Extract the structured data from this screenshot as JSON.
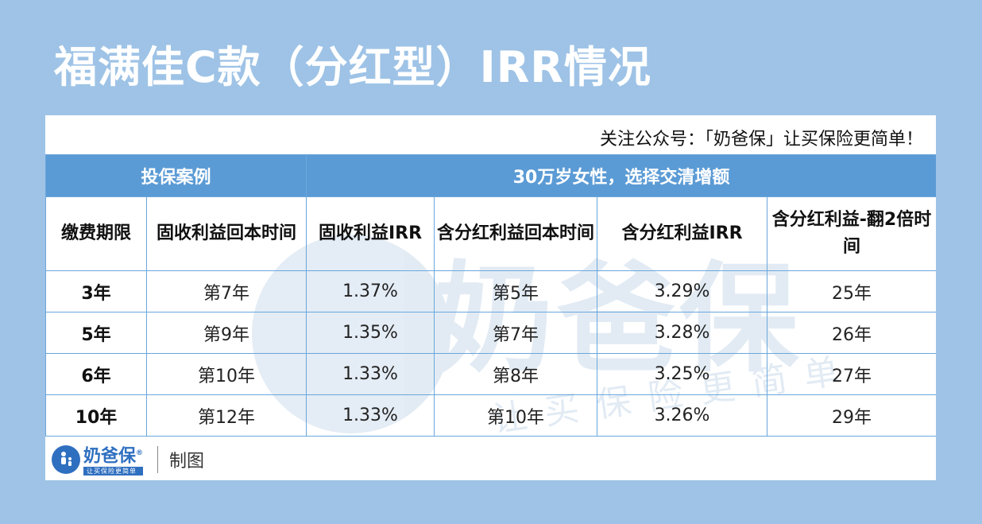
{
  "title": "福满佳C款（分红型）IRR情况",
  "notice": "关注公众号：「奶爸保」让买保险更简单！",
  "table": {
    "group_left": "投保案例",
    "group_right": "30万岁女性，选择交清增额",
    "columns": [
      "缴费期限",
      "固收利益回本时间",
      "固收利益IRR",
      "含分红利益回本时间",
      "含分红利益IRR",
      "含分红利益-翻2倍时间"
    ],
    "rows": [
      [
        "3年",
        "第7年",
        "1.37%",
        "第5年",
        "3.29%",
        "25年"
      ],
      [
        "5年",
        "第9年",
        "1.35%",
        "第7年",
        "3.28%",
        "26年"
      ],
      [
        "6年",
        "第10年",
        "1.33%",
        "第8年",
        "3.25%",
        "27年"
      ],
      [
        "10年",
        "第12年",
        "1.33%",
        "第10年",
        "3.26%",
        "29年"
      ]
    ]
  },
  "watermark": {
    "main": "奶爸保",
    "slogan": "让买保险更简单"
  },
  "footer": {
    "logo_main": "奶爸保",
    "logo_mark": "®",
    "logo_sub": "让买保险更简单",
    "label": "制图"
  }
}
